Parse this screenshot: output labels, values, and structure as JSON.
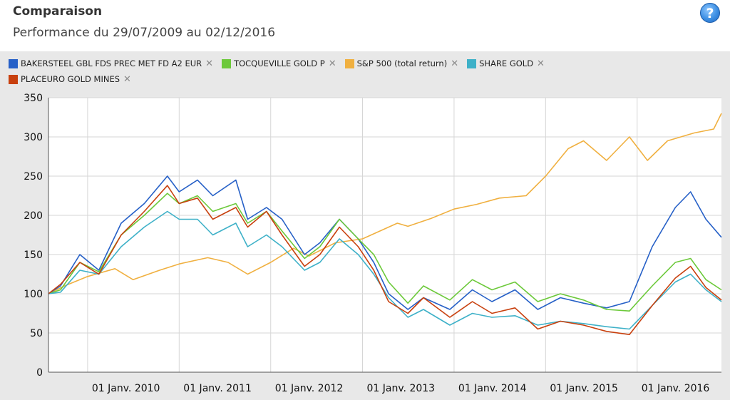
{
  "header": {
    "title": "Comparaison",
    "subtitle": "Performance du 29/07/2009 au 02/12/2016",
    "help_label": "?"
  },
  "legend": {
    "rows": [
      [
        {
          "label": "BAKERSTEEL GBL FDS PREC MET FD A2 EUR",
          "color": "#2660c7"
        },
        {
          "label": "TOCQUEVILLE GOLD P",
          "color": "#6cc93a"
        },
        {
          "label": "S&P 500 (total return)",
          "color": "#f0b040"
        },
        {
          "label": "SHARE GOLD",
          "color": "#3eb1c8"
        }
      ],
      [
        {
          "label": "PLACEURO GOLD MINES",
          "color": "#c8400e"
        }
      ]
    ],
    "remove_glyph": "✕"
  },
  "chart_data": {
    "type": "line",
    "title": "Comparaison",
    "subtitle": "Performance du 29/07/2009 au 02/12/2016",
    "x_start": "2009-07-29",
    "x_end": "2016-12-02",
    "ylim": [
      0,
      350
    ],
    "yticks": [
      0,
      50,
      100,
      150,
      200,
      250,
      300,
      350
    ],
    "xticks": [
      {
        "date": "2010-01-01",
        "label": "01 Janv. 2010"
      },
      {
        "date": "2011-01-01",
        "label": "01 Janv. 2011"
      },
      {
        "date": "2012-01-01",
        "label": "01 Janv. 2012"
      },
      {
        "date": "2013-01-01",
        "label": "01 Janv. 2013"
      },
      {
        "date": "2014-01-01",
        "label": "01 Janv. 2014"
      },
      {
        "date": "2015-01-01",
        "label": "01 Janv. 2015"
      },
      {
        "date": "2016-01-01",
        "label": "01 Janv. 2016"
      }
    ],
    "grid": true,
    "legend_position": "top",
    "series": [
      {
        "name": "S&P 500 (total return)",
        "color": "#f0b040",
        "points": [
          [
            "2009-07-29",
            100
          ],
          [
            "2009-10-01",
            110
          ],
          [
            "2010-01-01",
            122
          ],
          [
            "2010-04-20",
            132
          ],
          [
            "2010-07-01",
            118
          ],
          [
            "2010-10-15",
            130
          ],
          [
            "2011-01-01",
            138
          ],
          [
            "2011-04-25",
            146
          ],
          [
            "2011-07-15",
            140
          ],
          [
            "2011-10-01",
            125
          ],
          [
            "2012-01-01",
            140
          ],
          [
            "2012-04-01",
            158
          ],
          [
            "2012-06-01",
            148
          ],
          [
            "2012-09-15",
            165
          ],
          [
            "2013-01-01",
            170
          ],
          [
            "2013-05-20",
            190
          ],
          [
            "2013-07-01",
            186
          ],
          [
            "2013-10-01",
            196
          ],
          [
            "2014-01-01",
            208
          ],
          [
            "2014-04-01",
            214
          ],
          [
            "2014-07-01",
            222
          ],
          [
            "2014-10-15",
            225
          ],
          [
            "2015-01-01",
            250
          ],
          [
            "2015-04-01",
            285
          ],
          [
            "2015-06-01",
            295
          ],
          [
            "2015-09-01",
            270
          ],
          [
            "2015-12-01",
            300
          ],
          [
            "2016-02-11",
            270
          ],
          [
            "2016-05-01",
            295
          ],
          [
            "2016-08-15",
            305
          ],
          [
            "2016-11-01",
            310
          ],
          [
            "2016-12-02",
            330
          ]
        ]
      },
      {
        "name": "BAKERSTEEL GBL FDS PREC MET FD A2 EUR",
        "color": "#2660c7",
        "points": [
          [
            "2009-07-29",
            100
          ],
          [
            "2009-09-15",
            110
          ],
          [
            "2009-12-01",
            150
          ],
          [
            "2010-02-15",
            130
          ],
          [
            "2010-05-15",
            190
          ],
          [
            "2010-08-15",
            215
          ],
          [
            "2010-11-15",
            250
          ],
          [
            "2011-01-01",
            230
          ],
          [
            "2011-03-15",
            245
          ],
          [
            "2011-05-15",
            225
          ],
          [
            "2011-08-15",
            245
          ],
          [
            "2011-10-01",
            195
          ],
          [
            "2011-12-15",
            210
          ],
          [
            "2012-02-15",
            195
          ],
          [
            "2012-05-15",
            150
          ],
          [
            "2012-07-15",
            165
          ],
          [
            "2012-10-01",
            195
          ],
          [
            "2012-12-15",
            170
          ],
          [
            "2013-02-15",
            140
          ],
          [
            "2013-04-15",
            100
          ],
          [
            "2013-07-01",
            80
          ],
          [
            "2013-09-01",
            95
          ],
          [
            "2013-12-15",
            80
          ],
          [
            "2014-03-15",
            105
          ],
          [
            "2014-06-01",
            90
          ],
          [
            "2014-09-01",
            105
          ],
          [
            "2014-12-01",
            80
          ],
          [
            "2015-03-01",
            95
          ],
          [
            "2015-06-01",
            88
          ],
          [
            "2015-09-01",
            82
          ],
          [
            "2015-12-01",
            90
          ],
          [
            "2016-03-01",
            160
          ],
          [
            "2016-06-01",
            210
          ],
          [
            "2016-08-01",
            230
          ],
          [
            "2016-10-01",
            195
          ],
          [
            "2016-12-02",
            172
          ]
        ]
      },
      {
        "name": "TOCQUEVILLE GOLD P",
        "color": "#6cc93a",
        "points": [
          [
            "2009-07-29",
            100
          ],
          [
            "2009-09-15",
            105
          ],
          [
            "2009-12-01",
            140
          ],
          [
            "2010-02-15",
            128
          ],
          [
            "2010-05-15",
            175
          ],
          [
            "2010-08-15",
            200
          ],
          [
            "2010-11-15",
            228
          ],
          [
            "2011-01-01",
            215
          ],
          [
            "2011-03-15",
            225
          ],
          [
            "2011-05-15",
            205
          ],
          [
            "2011-08-15",
            215
          ],
          [
            "2011-10-01",
            190
          ],
          [
            "2011-12-15",
            205
          ],
          [
            "2012-02-15",
            180
          ],
          [
            "2012-05-15",
            145
          ],
          [
            "2012-07-15",
            160
          ],
          [
            "2012-10-01",
            195
          ],
          [
            "2012-12-15",
            170
          ],
          [
            "2013-02-15",
            150
          ],
          [
            "2013-04-15",
            115
          ],
          [
            "2013-07-01",
            88
          ],
          [
            "2013-09-01",
            110
          ],
          [
            "2013-12-15",
            92
          ],
          [
            "2014-03-15",
            118
          ],
          [
            "2014-06-01",
            105
          ],
          [
            "2014-09-01",
            115
          ],
          [
            "2014-12-01",
            90
          ],
          [
            "2015-03-01",
            100
          ],
          [
            "2015-06-01",
            92
          ],
          [
            "2015-09-01",
            80
          ],
          [
            "2015-12-01",
            78
          ],
          [
            "2016-03-01",
            110
          ],
          [
            "2016-06-01",
            140
          ],
          [
            "2016-08-01",
            145
          ],
          [
            "2016-10-01",
            118
          ],
          [
            "2016-12-02",
            105
          ]
        ]
      },
      {
        "name": "SHARE GOLD",
        "color": "#3eb1c8",
        "points": [
          [
            "2009-07-29",
            100
          ],
          [
            "2009-09-15",
            102
          ],
          [
            "2009-12-01",
            130
          ],
          [
            "2010-02-15",
            125
          ],
          [
            "2010-05-15",
            160
          ],
          [
            "2010-08-15",
            185
          ],
          [
            "2010-11-15",
            205
          ],
          [
            "2011-01-01",
            195
          ],
          [
            "2011-03-15",
            195
          ],
          [
            "2011-05-15",
            175
          ],
          [
            "2011-08-15",
            190
          ],
          [
            "2011-10-01",
            160
          ],
          [
            "2011-12-15",
            175
          ],
          [
            "2012-02-15",
            160
          ],
          [
            "2012-05-15",
            130
          ],
          [
            "2012-07-15",
            140
          ],
          [
            "2012-10-01",
            170
          ],
          [
            "2012-12-15",
            150
          ],
          [
            "2013-02-15",
            125
          ],
          [
            "2013-04-15",
            95
          ],
          [
            "2013-07-01",
            70
          ],
          [
            "2013-09-01",
            80
          ],
          [
            "2013-12-15",
            60
          ],
          [
            "2014-03-15",
            75
          ],
          [
            "2014-06-01",
            70
          ],
          [
            "2014-09-01",
            72
          ],
          [
            "2014-12-01",
            60
          ],
          [
            "2015-03-01",
            65
          ],
          [
            "2015-06-01",
            62
          ],
          [
            "2015-09-01",
            58
          ],
          [
            "2015-12-01",
            55
          ],
          [
            "2016-03-01",
            85
          ],
          [
            "2016-06-01",
            115
          ],
          [
            "2016-08-01",
            125
          ],
          [
            "2016-10-01",
            105
          ],
          [
            "2016-12-02",
            90
          ]
        ]
      },
      {
        "name": "PLACEURO GOLD MINES",
        "color": "#c8400e",
        "points": [
          [
            "2009-07-29",
            100
          ],
          [
            "2009-09-15",
            112
          ],
          [
            "2009-12-01",
            140
          ],
          [
            "2010-02-15",
            125
          ],
          [
            "2010-05-15",
            175
          ],
          [
            "2010-08-15",
            205
          ],
          [
            "2010-11-15",
            238
          ],
          [
            "2011-01-01",
            215
          ],
          [
            "2011-03-15",
            222
          ],
          [
            "2011-05-15",
            195
          ],
          [
            "2011-08-15",
            210
          ],
          [
            "2011-10-01",
            185
          ],
          [
            "2011-12-15",
            205
          ],
          [
            "2012-02-15",
            175
          ],
          [
            "2012-05-15",
            135
          ],
          [
            "2012-07-15",
            150
          ],
          [
            "2012-10-01",
            185
          ],
          [
            "2012-12-15",
            160
          ],
          [
            "2013-02-15",
            130
          ],
          [
            "2013-04-15",
            90
          ],
          [
            "2013-07-01",
            75
          ],
          [
            "2013-09-01",
            95
          ],
          [
            "2013-12-15",
            70
          ],
          [
            "2014-03-15",
            90
          ],
          [
            "2014-06-01",
            75
          ],
          [
            "2014-09-01",
            82
          ],
          [
            "2014-12-01",
            55
          ],
          [
            "2015-03-01",
            65
          ],
          [
            "2015-06-01",
            60
          ],
          [
            "2015-09-01",
            52
          ],
          [
            "2015-12-01",
            48
          ],
          [
            "2016-03-01",
            85
          ],
          [
            "2016-06-01",
            120
          ],
          [
            "2016-08-01",
            135
          ],
          [
            "2016-10-01",
            108
          ],
          [
            "2016-12-02",
            92
          ]
        ]
      }
    ]
  }
}
